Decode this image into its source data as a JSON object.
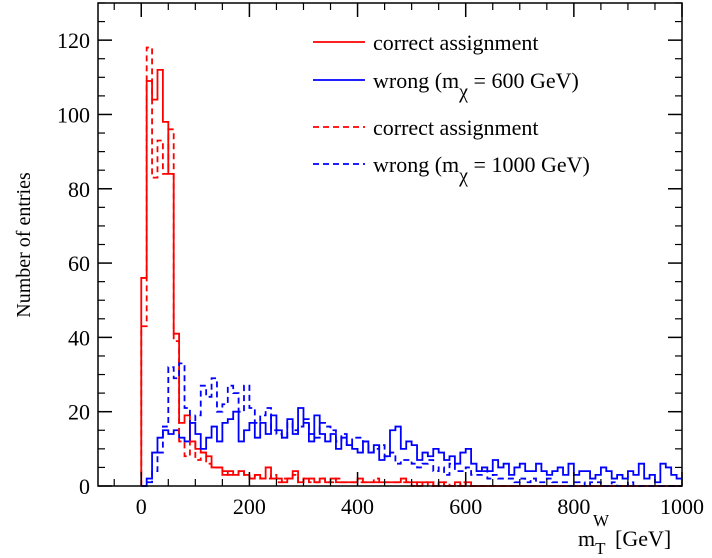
{
  "chart_data": {
    "type": "line",
    "step": true,
    "title": "",
    "xlabel": {
      "main": "m",
      "sub": "T",
      "sup": "W",
      "unit": "[GeV]"
    },
    "ylabel": "Number of entries",
    "xlim": [
      -80,
      1000
    ],
    "ylim": [
      0,
      130
    ],
    "xticks": [
      0,
      200,
      400,
      600,
      800,
      1000
    ],
    "xtick_labels": [
      "0",
      "200",
      "400",
      "600",
      "800",
      "1000"
    ],
    "yticks": [
      0,
      20,
      40,
      60,
      80,
      100,
      120
    ],
    "ytick_labels": [
      "0",
      "20",
      "40",
      "60",
      "80",
      "100",
      "120"
    ],
    "grid": false,
    "legend_position": "top-right",
    "bin_width": 10,
    "bin_start": 0,
    "series": [
      {
        "name": "correct assignment",
        "color": "#ff0000",
        "dash": "solid",
        "values": [
          56,
          109,
          104,
          112,
          98,
          84,
          41,
          17,
          19,
          12,
          10,
          9,
          8,
          5,
          5,
          3,
          4,
          3,
          4,
          3,
          2,
          3,
          2,
          5,
          2,
          2,
          1,
          2,
          4,
          1,
          2,
          2,
          1,
          2,
          1,
          2,
          1,
          1,
          1,
          1,
          2,
          1,
          1,
          1,
          1,
          1,
          1,
          1,
          2,
          1,
          1,
          0,
          1,
          1,
          0,
          1,
          0,
          0,
          1,
          0,
          1,
          0,
          0,
          0,
          0,
          0,
          0,
          0,
          0,
          0,
          0,
          0,
          0,
          0,
          0,
          0,
          0,
          0,
          0,
          0,
          0,
          0,
          0,
          0,
          0,
          0,
          0,
          0,
          0,
          0,
          0,
          0,
          0,
          0,
          0,
          0,
          0,
          0,
          0,
          0
        ]
      },
      {
        "name": "wrong  (mχ = 600 GeV)",
        "legend_main": "wrong  (m",
        "legend_sub": "χ",
        "legend_rest": " = 600 GeV)",
        "color": "#0000ff",
        "dash": "solid",
        "values": [
          0,
          2,
          9,
          13,
          15,
          14,
          15,
          13,
          12,
          17,
          14,
          10,
          13,
          16,
          12,
          17,
          18,
          20,
          12,
          15,
          17,
          13,
          17,
          14,
          19,
          15,
          13,
          18,
          14,
          21,
          17,
          12,
          19,
          14,
          12,
          14,
          10,
          13,
          11,
          10,
          9,
          12,
          9,
          11,
          7,
          8,
          15,
          16,
          10,
          12,
          11,
          7,
          9,
          8,
          10,
          9,
          7,
          8,
          6,
          9,
          10,
          6,
          4,
          5,
          4,
          7,
          5,
          6,
          3,
          5,
          6,
          4,
          4,
          6,
          4,
          3,
          4,
          5,
          3,
          6,
          3,
          4,
          4,
          2,
          3,
          5,
          4,
          2,
          3,
          2,
          4,
          3,
          6,
          2,
          3,
          1,
          6,
          5,
          3,
          2
        ]
      },
      {
        "name": "correct assignment",
        "color": "#ff0000",
        "dash": "dashed",
        "values": [
          43,
          118,
          83,
          93,
          84,
          96,
          39,
          12,
          8,
          12,
          7,
          9,
          6,
          5,
          5,
          4,
          3,
          3,
          4,
          3,
          2,
          3,
          2,
          2,
          3,
          1,
          2,
          2,
          3,
          1,
          2,
          1,
          1,
          2,
          1,
          1,
          2,
          1,
          1,
          1,
          1,
          1,
          1,
          2,
          1,
          1,
          1,
          1,
          1,
          1,
          0,
          1,
          1,
          0,
          1,
          0,
          1,
          0,
          0,
          1,
          0,
          0,
          0,
          0,
          0,
          0,
          0,
          0,
          0,
          0,
          0,
          0,
          0,
          0,
          0,
          0,
          0,
          0,
          0,
          0,
          0,
          0,
          0,
          0,
          0,
          0,
          0,
          0,
          0,
          0,
          0,
          0,
          0,
          0,
          0,
          0,
          0,
          0,
          0,
          0
        ]
      },
      {
        "name": "wrong (mχ = 1000 GeV)",
        "legend_main": "wrong (m",
        "legend_sub": "χ",
        "legend_rest": " = 1000 GeV)",
        "color": "#0000ff",
        "dash": "dashed",
        "values": [
          0,
          1,
          4,
          9,
          16,
          32,
          29,
          33,
          21,
          17,
          19,
          27,
          24,
          29,
          20,
          22,
          27,
          25,
          20,
          27,
          21,
          17,
          19,
          21,
          15,
          14,
          13,
          17,
          15,
          16,
          18,
          14,
          13,
          17,
          16,
          15,
          12,
          14,
          11,
          13,
          13,
          12,
          9,
          10,
          11,
          8,
          9,
          6,
          7,
          7,
          6,
          5,
          6,
          7,
          4,
          5,
          3,
          6,
          4,
          4,
          5,
          3,
          3,
          4,
          2,
          3,
          2,
          2,
          2,
          1,
          2,
          1,
          2,
          1,
          1,
          2,
          1,
          1,
          1,
          0,
          1,
          1,
          0,
          1,
          1,
          0,
          0,
          1,
          0,
          0,
          1,
          0,
          0,
          0,
          0,
          0,
          0,
          0,
          0,
          0
        ]
      }
    ]
  }
}
